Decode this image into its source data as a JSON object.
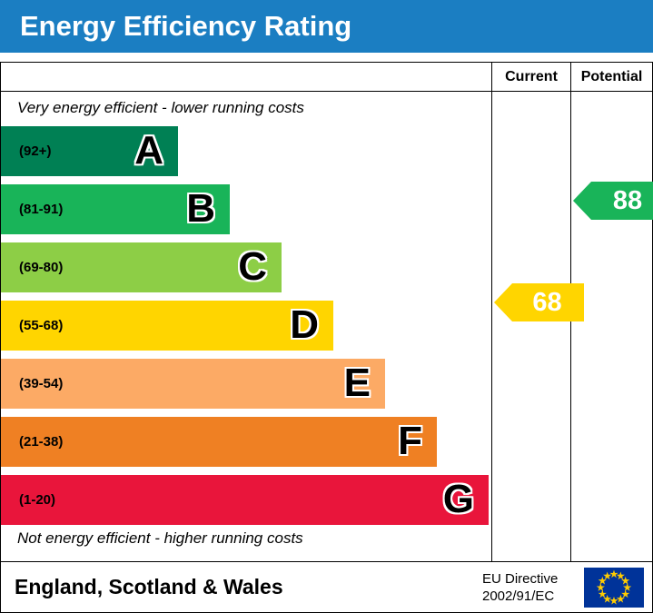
{
  "header": {
    "title": "Energy Efficiency Rating"
  },
  "table": {
    "columns": {
      "current": "Current",
      "potential": "Potential"
    },
    "top_note": "Very energy efficient - lower running costs",
    "bottom_note": "Not energy efficient - higher running costs"
  },
  "footer": {
    "region": "England, Scotland & Wales",
    "directive_line1": "EU Directive",
    "directive_line2": "2002/91/EC"
  },
  "colors": {
    "title_bar": "#1b7ec2",
    "border": "#000000",
    "eu_flag_blue": "#003399",
    "eu_flag_stars": "#ffcc00"
  },
  "chart_data": {
    "type": "bar",
    "title": "Energy Efficiency Rating",
    "categories": [
      "A",
      "B",
      "C",
      "D",
      "E",
      "F",
      "G"
    ],
    "bands": [
      {
        "letter": "A",
        "range_label": "(92+)",
        "min": 92,
        "max": 100,
        "color": "#008054"
      },
      {
        "letter": "B",
        "range_label": "(81-91)",
        "min": 81,
        "max": 91,
        "color": "#19b459"
      },
      {
        "letter": "C",
        "range_label": "(69-80)",
        "min": 69,
        "max": 80,
        "color": "#8dce46"
      },
      {
        "letter": "D",
        "range_label": "(55-68)",
        "min": 55,
        "max": 68,
        "color": "#ffd500"
      },
      {
        "letter": "E",
        "range_label": "(39-54)",
        "min": 39,
        "max": 54,
        "color": "#fcaa65"
      },
      {
        "letter": "F",
        "range_label": "(21-38)",
        "min": 21,
        "max": 38,
        "color": "#ef8023"
      },
      {
        "letter": "G",
        "range_label": "(1-20)",
        "min": 1,
        "max": 20,
        "color": "#e9153b"
      }
    ],
    "pointers": [
      {
        "name": "Current",
        "value": 68,
        "band": "D",
        "color": "#ffd500"
      },
      {
        "name": "Potential",
        "value": 88,
        "band": "B",
        "color": "#19b459"
      }
    ],
    "annotations": {
      "top": "Very energy efficient - lower running costs",
      "bottom": "Not energy efficient - higher running costs"
    },
    "legend_position": "none",
    "grid": false
  }
}
